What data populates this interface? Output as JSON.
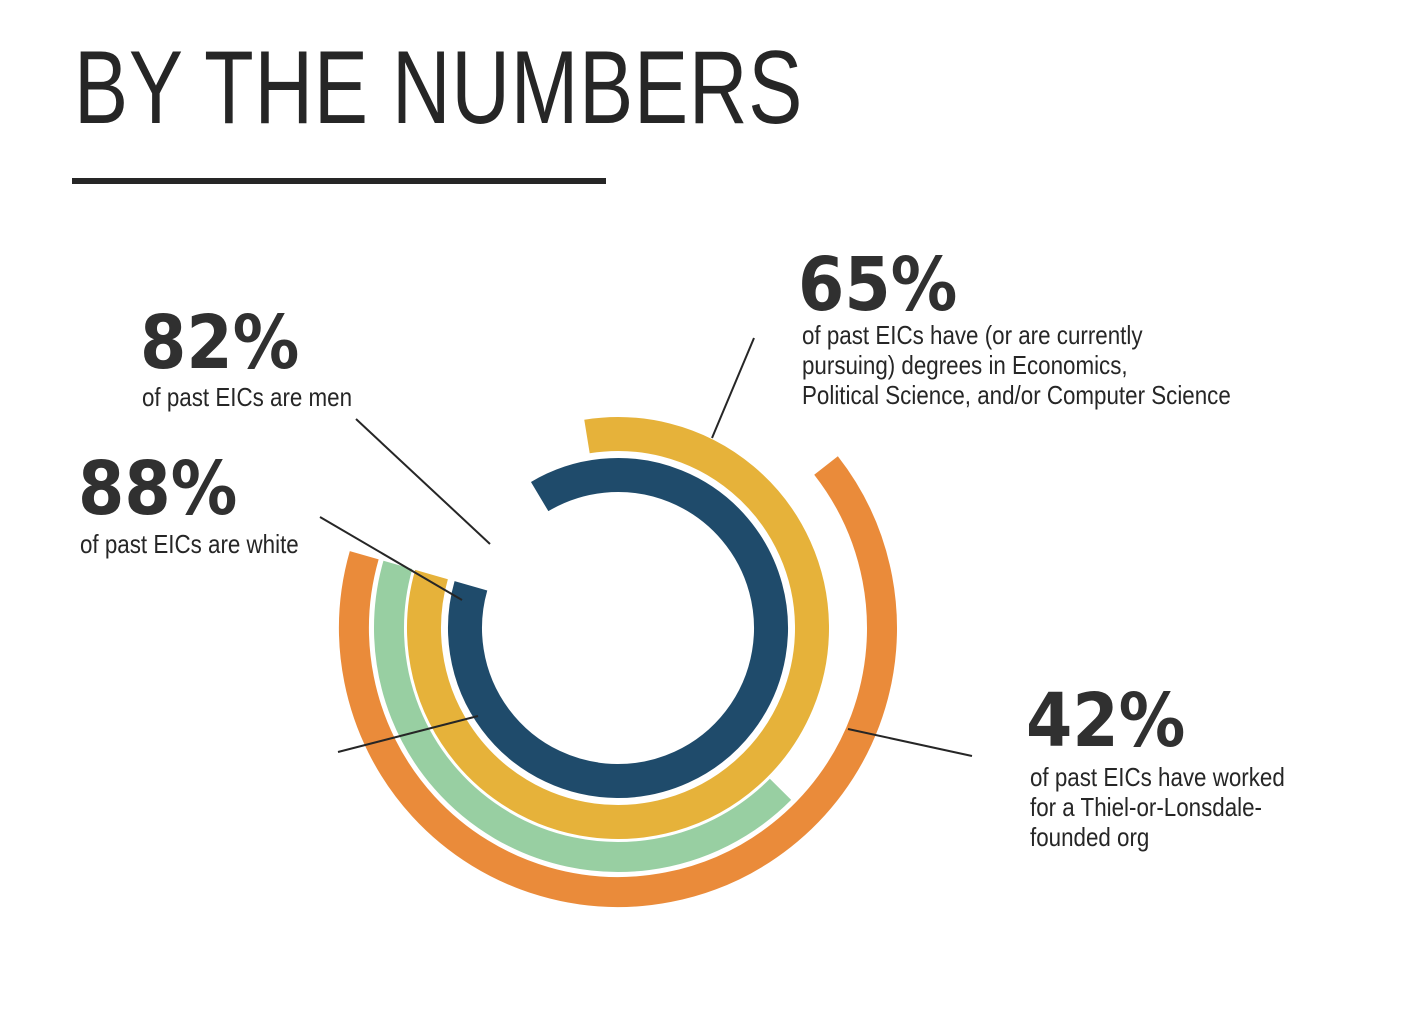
{
  "title": "BY THE NUMBERS",
  "stats": {
    "men": {
      "value": "82%",
      "description": "of past EICs are men"
    },
    "white": {
      "value": "88%",
      "description": "of past EICs are white"
    },
    "degrees": {
      "value": "65%",
      "description_lines": [
        "of past EICs have (or are currently",
        "pursuing) degrees in Economics,",
        "Political Science, and/or Computer Science"
      ]
    },
    "thiel": {
      "value": "42%",
      "description_lines": [
        "of past EICs have worked",
        "for a Thiel-or-Lonsdale-",
        "founded org"
      ]
    }
  },
  "chart_data": {
    "type": "radial-bar",
    "title": "BY THE NUMBERS",
    "unit": "%",
    "series": [
      {
        "name": "of past EICs are white",
        "value": 88,
        "color": "#1f4b6b"
      },
      {
        "name": "of past EICs are men",
        "value": 82,
        "color": "#e6b23a"
      },
      {
        "name": "of past EICs have worked for a Thiel-or-Lonsdale-founded org",
        "value": 42,
        "color": "#98cfa2"
      },
      {
        "name": "of past EICs have (or are currently pursuing) degrees in Economics, Political Science, and/or Computer Science",
        "value": 65,
        "color": "#ea8b3a"
      }
    ]
  }
}
